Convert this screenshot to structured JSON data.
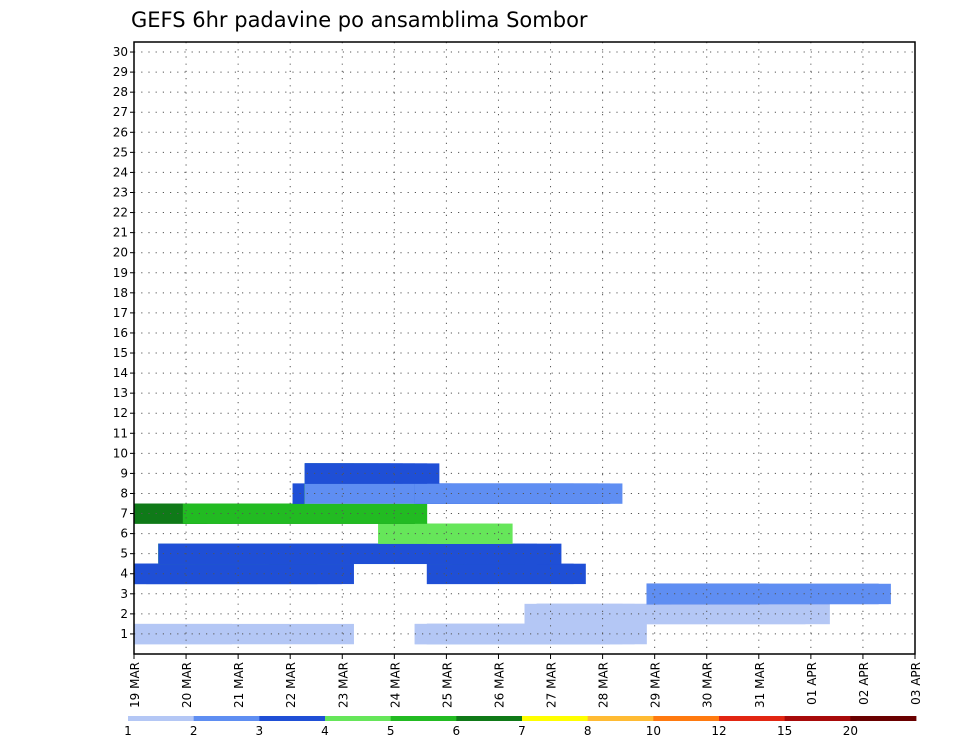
{
  "chart_data": {
    "type": "heatmap",
    "title": "GEFS 6hr padavine po ansamblima Sombor",
    "xlabel": "",
    "ylabel": "",
    "x_tick_labels": [
      "19 MAR",
      "20 MAR",
      "21 MAR",
      "22 MAR",
      "23 MAR",
      "24 MAR",
      "25 MAR",
      "26 MAR",
      "27 MAR",
      "28 MAR",
      "29 MAR",
      "30 MAR",
      "31 MAR",
      "01 APR",
      "02 APR",
      "03 APR"
    ],
    "y_tick_labels": [
      "1",
      "2",
      "3",
      "4",
      "5",
      "6",
      "7",
      "8",
      "9",
      "10",
      "11",
      "12",
      "13",
      "14",
      "15",
      "16",
      "17",
      "18",
      "19",
      "20",
      "21",
      "22",
      "23",
      "24",
      "25",
      "26",
      "27",
      "28",
      "29",
      "30"
    ],
    "x_axis": "forecast time, 6-hourly steps from 19 MAR to 03 APR",
    "y_axis": "ensemble member",
    "grid": true,
    "colorbar": {
      "position": "bottom",
      "labels": [
        "1",
        "2",
        "3",
        "4",
        "5",
        "6",
        "7",
        "8",
        "10",
        "12",
        "15",
        "20"
      ],
      "colors": [
        "#b4c7f5",
        "#5f8ef2",
        "#1f4fd6",
        "#66e65a",
        "#22bb22",
        "#0f7a18",
        "#ffff00",
        "#ffbb33",
        "#ff7a10",
        "#e22612",
        "#a80a0a",
        "#6a0000"
      ]
    },
    "cells": [
      [
        1,
        0,
        0,
        8
      ],
      [
        1,
        0,
        0,
        18
      ],
      [
        1,
        23,
        0,
        9
      ],
      [
        1,
        24,
        0,
        8
      ],
      [
        1,
        23,
        0,
        10
      ],
      [
        1,
        24,
        0,
        13
      ],
      [
        1,
        24,
        0,
        14
      ],
      [
        1,
        24,
        0,
        15
      ],
      [
        1,
        24,
        0,
        16
      ],
      [
        1,
        24,
        0,
        17
      ],
      [
        1,
        24,
        0,
        18
      ],
      [
        2,
        32,
        0,
        1
      ],
      [
        2,
        33,
        0,
        2
      ],
      [
        2,
        33,
        0,
        3
      ],
      [
        2,
        33,
        0,
        4
      ],
      [
        2,
        33,
        0,
        5
      ],
      [
        2,
        33,
        0,
        7
      ],
      [
        2,
        33,
        0,
        8
      ],
      [
        2,
        36,
        0,
        19
      ],
      [
        2,
        36,
        0,
        21
      ],
      [
        3,
        42,
        1,
        1
      ],
      [
        3,
        42,
        1,
        2
      ],
      [
        3,
        42,
        2,
        9
      ],
      [
        3,
        42,
        1,
        10
      ],
      [
        3,
        42,
        2,
        19
      ],
      [
        3,
        42,
        1,
        20
      ],
      [
        4,
        0,
        1,
        16
      ],
      [
        4,
        0,
        2,
        15
      ],
      [
        4,
        1,
        2,
        16
      ],
      [
        4,
        0,
        2,
        17
      ],
      [
        4,
        0,
        2,
        18
      ],
      [
        4,
        24,
        2,
        12
      ],
      [
        4,
        24,
        2,
        13
      ],
      [
        5,
        2,
        1,
        0
      ],
      [
        5,
        2,
        1,
        1
      ],
      [
        5,
        2,
        1,
        3
      ],
      [
        5,
        2,
        2,
        8
      ],
      [
        5,
        2,
        3,
        9
      ],
      [
        5,
        2,
        5,
        13
      ],
      [
        5,
        2,
        3,
        24
      ],
      [
        5,
        2,
        3,
        25
      ],
      [
        5,
        2,
        2,
        29
      ],
      [
        5,
        2,
        4,
        30
      ],
      [
        5,
        2,
        1,
        31
      ],
      [
        5,
        2,
        2,
        33
      ],
      [
        6,
        24,
        3,
        1
      ],
      [
        6,
        24,
        3,
        2
      ],
      [
        6,
        20,
        3,
        3
      ],
      [
        6,
        23,
        3,
        4
      ],
      [
        6,
        24,
        3,
        5
      ],
      [
        6,
        24,
        3,
        6
      ],
      [
        6,
        24,
        3,
        7
      ],
      [
        7,
        7,
        4,
        1
      ],
      [
        7,
        0,
        5,
        6
      ],
      [
        7,
        4,
        5,
        19
      ],
      [
        7,
        4,
        4,
        20
      ],
      [
        8,
        14,
        2,
        0
      ],
      [
        8,
        13,
        2,
        1
      ],
      [
        8,
        13,
        2,
        2
      ],
      [
        8,
        14,
        2,
        3
      ],
      [
        8,
        14,
        3,
        4
      ],
      [
        8,
        14,
        3,
        5
      ],
      [
        8,
        14,
        3,
        6
      ],
      [
        8,
        14,
        3,
        7
      ],
      [
        8,
        14,
        2,
        8
      ],
      [
        8,
        14,
        3,
        9
      ],
      [
        8,
        14,
        3,
        10
      ],
      [
        8,
        14,
        3,
        11
      ],
      [
        8,
        14,
        1,
        12
      ],
      [
        8,
        23,
        1,
        13
      ],
      [
        8,
        23,
        0,
        14
      ],
      [
        8,
        23,
        1,
        15
      ],
      [
        8,
        23,
        2,
        16
      ],
      [
        8,
        23,
        1,
        17
      ],
      [
        9,
        14,
        2,
        0
      ],
      [
        9,
        14,
        2,
        1
      ],
      [
        9,
        14,
        2,
        2
      ],
      [
        9,
        14,
        2,
        3
      ],
      [
        9,
        14,
        2,
        4
      ],
      [
        9,
        14,
        3,
        5
      ],
      [
        9,
        14,
        3,
        6
      ],
      [
        9,
        14,
        2,
        7
      ],
      [
        9,
        14,
        2,
        8
      ],
      [
        9,
        14,
        1,
        9
      ],
      [
        9,
        14,
        2,
        10
      ],
      [
        9,
        14,
        2,
        11
      ]
    ]
  }
}
